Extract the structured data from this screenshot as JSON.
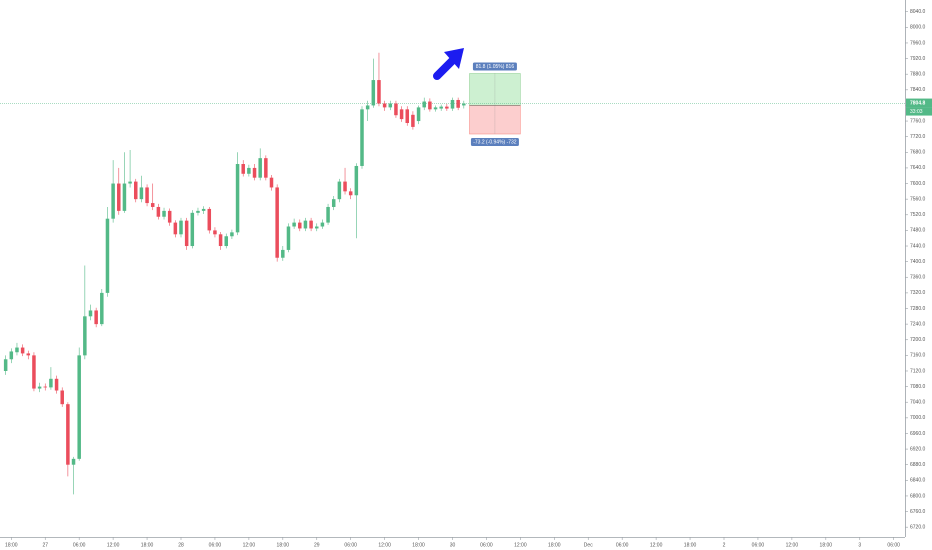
{
  "chart_data": {
    "type": "candlestick",
    "up_color": "#53b987",
    "down_color": "#eb4d5c",
    "xlim": [
      -1,
      159
    ],
    "ylim": [
      6700,
      8070
    ],
    "xticks": [
      {
        "value": 1,
        "label": "18:00"
      },
      {
        "value": 7,
        "label": "27"
      },
      {
        "value": 13,
        "label": "06:00"
      },
      {
        "value": 19,
        "label": "12:00"
      },
      {
        "value": 25,
        "label": "18:00"
      },
      {
        "value": 31,
        "label": "28"
      },
      {
        "value": 37,
        "label": "06:00"
      },
      {
        "value": 43,
        "label": "12:00"
      },
      {
        "value": 49,
        "label": "18:00"
      },
      {
        "value": 55,
        "label": "29"
      },
      {
        "value": 61,
        "label": "06:00"
      },
      {
        "value": 67,
        "label": "12:00"
      },
      {
        "value": 73,
        "label": "18:00"
      },
      {
        "value": 79,
        "label": "30"
      },
      {
        "value": 85,
        "label": "06:00"
      },
      {
        "value": 91,
        "label": "12:00"
      },
      {
        "value": 97,
        "label": "18:00"
      },
      {
        "value": 103,
        "label": "Dec"
      },
      {
        "value": 109,
        "label": "06:00"
      },
      {
        "value": 115,
        "label": "12:00"
      },
      {
        "value": 121,
        "label": "18:00"
      },
      {
        "value": 127,
        "label": "2"
      },
      {
        "value": 133,
        "label": "06:00"
      },
      {
        "value": 139,
        "label": "12:00"
      },
      {
        "value": 145,
        "label": "18:00"
      },
      {
        "value": 151,
        "label": "3"
      },
      {
        "value": 157,
        "label": "06:00"
      }
    ],
    "yticks": [
      {
        "value": 6720,
        "label": "6720.0"
      },
      {
        "value": 6760,
        "label": "6760.0"
      },
      {
        "value": 6800,
        "label": "6800.0"
      },
      {
        "value": 6840,
        "label": "6840.0"
      },
      {
        "value": 6880,
        "label": "6880.0"
      },
      {
        "value": 6920,
        "label": "6920.0"
      },
      {
        "value": 6960,
        "label": "6960.0"
      },
      {
        "value": 7000,
        "label": "7000.0"
      },
      {
        "value": 7040,
        "label": "7040.0"
      },
      {
        "value": 7080,
        "label": "7080.0"
      },
      {
        "value": 7120,
        "label": "7120.0"
      },
      {
        "value": 7160,
        "label": "7160.0"
      },
      {
        "value": 7200,
        "label": "7200.0"
      },
      {
        "value": 7240,
        "label": "7240.0"
      },
      {
        "value": 7280,
        "label": "7280.0"
      },
      {
        "value": 7320,
        "label": "7320.0"
      },
      {
        "value": 7360,
        "label": "7360.0"
      },
      {
        "value": 7400,
        "label": "7400.0"
      },
      {
        "value": 7440,
        "label": "7440.0"
      },
      {
        "value": 7480,
        "label": "7480.0"
      },
      {
        "value": 7520,
        "label": "7520.0"
      },
      {
        "value": 7560,
        "label": "7560.0"
      },
      {
        "value": 7600,
        "label": "7600.0"
      },
      {
        "value": 7640,
        "label": "7640.0"
      },
      {
        "value": 7680,
        "label": "7680.0"
      },
      {
        "value": 7720,
        "label": "7720.0"
      },
      {
        "value": 7760,
        "label": "7760.0"
      },
      {
        "value": 7800,
        "label": "7800.0"
      },
      {
        "value": 7840,
        "label": "7840.0"
      },
      {
        "value": 7880,
        "label": "7880.0"
      },
      {
        "value": 7920,
        "label": "7920.0"
      },
      {
        "value": 7960,
        "label": "7960.0"
      },
      {
        "value": 8000,
        "label": "8000.0"
      },
      {
        "value": 8040,
        "label": "8040.0"
      }
    ],
    "last_price": 7804.8,
    "timer": "33:03",
    "position": {
      "start": 82,
      "end": 91,
      "entry": 7800,
      "target": 7881.8,
      "stop": 7726.8,
      "target_label": "81.8 (1.05%) 816",
      "stop_label": "-73.2 (-0.94%) -732"
    },
    "candles": [
      {
        "open": 7120,
        "high": 7160,
        "low": 7110,
        "close": 7150
      },
      {
        "open": 7150,
        "high": 7178,
        "low": 7140,
        "close": 7170
      },
      {
        "open": 7168,
        "high": 7192,
        "low": 7160,
        "close": 7180
      },
      {
        "open": 7180,
        "high": 7188,
        "low": 7158,
        "close": 7165
      },
      {
        "open": 7165,
        "high": 7172,
        "low": 7150,
        "close": 7160
      },
      {
        "open": 7160,
        "high": 7168,
        "low": 7068,
        "close": 7075
      },
      {
        "open": 7075,
        "high": 7090,
        "low": 7066,
        "close": 7080
      },
      {
        "open": 7080,
        "high": 7088,
        "low": 7070,
        "close": 7078
      },
      {
        "open": 7078,
        "high": 7130,
        "low": 7072,
        "close": 7100
      },
      {
        "open": 7100,
        "high": 7108,
        "low": 7062,
        "close": 7070
      },
      {
        "open": 7070,
        "high": 7078,
        "low": 7028,
        "close": 7035
      },
      {
        "open": 7035,
        "high": 7040,
        "low": 6850,
        "close": 6880
      },
      {
        "open": 6880,
        "high": 6900,
        "low": 6804,
        "close": 6895
      },
      {
        "open": 6895,
        "high": 7180,
        "low": 6890,
        "close": 7160
      },
      {
        "open": 7160,
        "high": 7390,
        "low": 7150,
        "close": 7260
      },
      {
        "open": 7260,
        "high": 7290,
        "low": 7250,
        "close": 7275
      },
      {
        "open": 7275,
        "high": 7282,
        "low": 7232,
        "close": 7240
      },
      {
        "open": 7240,
        "high": 7330,
        "low": 7235,
        "close": 7320
      },
      {
        "open": 7320,
        "high": 7540,
        "low": 7310,
        "close": 7510
      },
      {
        "open": 7510,
        "high": 7660,
        "low": 7500,
        "close": 7600
      },
      {
        "open": 7600,
        "high": 7640,
        "low": 7520,
        "close": 7530
      },
      {
        "open": 7530,
        "high": 7680,
        "low": 7525,
        "close": 7600
      },
      {
        "open": 7600,
        "high": 7686,
        "low": 7590,
        "close": 7605
      },
      {
        "open": 7605,
        "high": 7612,
        "low": 7552,
        "close": 7560
      },
      {
        "open": 7560,
        "high": 7620,
        "low": 7552,
        "close": 7590
      },
      {
        "open": 7590,
        "high": 7598,
        "low": 7542,
        "close": 7550
      },
      {
        "open": 7550,
        "high": 7600,
        "low": 7532,
        "close": 7540
      },
      {
        "open": 7540,
        "high": 7548,
        "low": 7508,
        "close": 7515
      },
      {
        "open": 7515,
        "high": 7538,
        "low": 7508,
        "close": 7530
      },
      {
        "open": 7530,
        "high": 7536,
        "low": 7492,
        "close": 7500
      },
      {
        "open": 7500,
        "high": 7506,
        "low": 7462,
        "close": 7470
      },
      {
        "open": 7470,
        "high": 7512,
        "low": 7462,
        "close": 7505
      },
      {
        "open": 7505,
        "high": 7512,
        "low": 7430,
        "close": 7440
      },
      {
        "open": 7440,
        "high": 7532,
        "low": 7434,
        "close": 7525
      },
      {
        "open": 7525,
        "high": 7538,
        "low": 7518,
        "close": 7530
      },
      {
        "open": 7530,
        "high": 7542,
        "low": 7522,
        "close": 7535
      },
      {
        "open": 7535,
        "high": 7540,
        "low": 7472,
        "close": 7480
      },
      {
        "open": 7480,
        "high": 7488,
        "low": 7462,
        "close": 7470
      },
      {
        "open": 7470,
        "high": 7476,
        "low": 7430,
        "close": 7440
      },
      {
        "open": 7440,
        "high": 7472,
        "low": 7434,
        "close": 7465
      },
      {
        "open": 7465,
        "high": 7482,
        "low": 7458,
        "close": 7475
      },
      {
        "open": 7475,
        "high": 7680,
        "low": 7468,
        "close": 7650
      },
      {
        "open": 7650,
        "high": 7660,
        "low": 7618,
        "close": 7625
      },
      {
        "open": 7625,
        "high": 7648,
        "low": 7618,
        "close": 7640
      },
      {
        "open": 7640,
        "high": 7650,
        "low": 7608,
        "close": 7615
      },
      {
        "open": 7615,
        "high": 7690,
        "low": 7608,
        "close": 7665
      },
      {
        "open": 7665,
        "high": 7672,
        "low": 7608,
        "close": 7615
      },
      {
        "open": 7615,
        "high": 7622,
        "low": 7582,
        "close": 7590
      },
      {
        "open": 7590,
        "high": 7598,
        "low": 7400,
        "close": 7410
      },
      {
        "open": 7410,
        "high": 7440,
        "low": 7402,
        "close": 7430
      },
      {
        "open": 7430,
        "high": 7498,
        "low": 7424,
        "close": 7490
      },
      {
        "open": 7490,
        "high": 7510,
        "low": 7484,
        "close": 7500
      },
      {
        "open": 7500,
        "high": 7508,
        "low": 7478,
        "close": 7485
      },
      {
        "open": 7485,
        "high": 7512,
        "low": 7478,
        "close": 7505
      },
      {
        "open": 7505,
        "high": 7512,
        "low": 7478,
        "close": 7485
      },
      {
        "open": 7485,
        "high": 7498,
        "low": 7478,
        "close": 7490
      },
      {
        "open": 7490,
        "high": 7508,
        "low": 7484,
        "close": 7500
      },
      {
        "open": 7500,
        "high": 7548,
        "low": 7494,
        "close": 7540
      },
      {
        "open": 7540,
        "high": 7568,
        "low": 7532,
        "close": 7560
      },
      {
        "open": 7560,
        "high": 7612,
        "low": 7552,
        "close": 7605
      },
      {
        "open": 7605,
        "high": 7640,
        "low": 7572,
        "close": 7580
      },
      {
        "open": 7580,
        "high": 7588,
        "low": 7560,
        "close": 7570
      },
      {
        "open": 7570,
        "high": 7652,
        "low": 7460,
        "close": 7645
      },
      {
        "open": 7645,
        "high": 7798,
        "low": 7638,
        "close": 7790
      },
      {
        "open": 7790,
        "high": 7812,
        "low": 7760,
        "close": 7800
      },
      {
        "open": 7800,
        "high": 7920,
        "low": 7794,
        "close": 7865
      },
      {
        "open": 7865,
        "high": 7935,
        "low": 7798,
        "close": 7805
      },
      {
        "open": 7805,
        "high": 7812,
        "low": 7786,
        "close": 7795
      },
      {
        "open": 7795,
        "high": 7812,
        "low": 7788,
        "close": 7805
      },
      {
        "open": 7805,
        "high": 7812,
        "low": 7768,
        "close": 7775
      },
      {
        "open": 7790,
        "high": 7798,
        "low": 7758,
        "close": 7765
      },
      {
        "open": 7790,
        "high": 7798,
        "low": 7748,
        "close": 7755
      },
      {
        "open": 7776,
        "high": 7785,
        "low": 7738,
        "close": 7745
      },
      {
        "open": 7760,
        "high": 7800,
        "low": 7752,
        "close": 7795
      },
      {
        "open": 7795,
        "high": 7820,
        "low": 7788,
        "close": 7810
      },
      {
        "open": 7810,
        "high": 7818,
        "low": 7784,
        "close": 7790
      },
      {
        "open": 7790,
        "high": 7800,
        "low": 7784,
        "close": 7795
      },
      {
        "open": 7792,
        "high": 7802,
        "low": 7786,
        "close": 7797
      },
      {
        "open": 7797,
        "high": 7804,
        "low": 7786,
        "close": 7792
      },
      {
        "open": 7792,
        "high": 7820,
        "low": 7786,
        "close": 7814
      },
      {
        "open": 7814,
        "high": 7820,
        "low": 7788,
        "close": 7794
      },
      {
        "open": 7800,
        "high": 7812,
        "low": 7792,
        "close": 7804.8
      }
    ]
  }
}
